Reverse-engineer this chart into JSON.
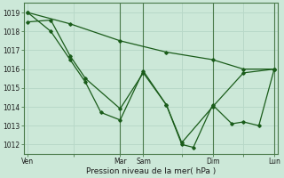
{
  "bg_color": "#cce8d8",
  "grid_color": "#b8d8c8",
  "line_color": "#1a5c1a",
  "marker_color": "#1a5c1a",
  "ylabel_ticks": [
    1012,
    1013,
    1014,
    1015,
    1016,
    1017,
    1018,
    1019
  ],
  "ylim": [
    1011.5,
    1019.5
  ],
  "xlabel": "Pression niveau de la mer( hPa )",
  "xtick_labels": [
    "Ven",
    "",
    "Mar",
    "Sam",
    "",
    "Dim",
    "",
    "Lun"
  ],
  "xtick_positions": [
    0,
    60,
    120,
    150,
    200,
    240,
    280,
    320
  ],
  "vline_positions": [
    120,
    150,
    240,
    320
  ],
  "series1_x": [
    0,
    30,
    55,
    75,
    95,
    120,
    150,
    180,
    200,
    215,
    240,
    265,
    280,
    300,
    320
  ],
  "series1_y": [
    1019.0,
    1018.0,
    1016.5,
    1015.3,
    1013.7,
    1013.3,
    1015.9,
    1014.1,
    1012.0,
    1011.85,
    1014.1,
    1013.1,
    1013.2,
    1013.0,
    1016.0
  ],
  "series2_x": [
    0,
    30,
    55,
    75,
    120,
    150,
    180,
    200,
    240,
    280,
    320
  ],
  "series2_y": [
    1018.5,
    1018.6,
    1016.7,
    1015.5,
    1013.9,
    1015.8,
    1014.1,
    1012.1,
    1014.0,
    1015.8,
    1016.0
  ],
  "series3_x": [
    0,
    55,
    120,
    180,
    240,
    280,
    320
  ],
  "series3_y": [
    1019.0,
    1018.4,
    1017.5,
    1016.9,
    1016.5,
    1016.0,
    1016.0
  ]
}
